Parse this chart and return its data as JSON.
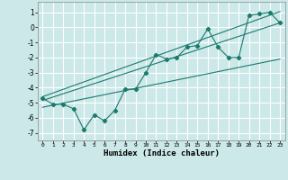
{
  "xlabel": "Humidex (Indice chaleur)",
  "xlim": [
    -0.5,
    23.5
  ],
  "ylim": [
    -7.5,
    1.7
  ],
  "yticks": [
    1,
    0,
    -1,
    -2,
    -3,
    -4,
    -5,
    -6,
    -7
  ],
  "xticks": [
    0,
    1,
    2,
    3,
    4,
    5,
    6,
    7,
    8,
    9,
    10,
    11,
    12,
    13,
    14,
    15,
    16,
    17,
    18,
    19,
    20,
    21,
    22,
    23
  ],
  "bg_color": "#cce8e8",
  "grid_color": "#aacccc",
  "line_color": "#1a7a6e",
  "scatter_x": [
    0,
    1,
    2,
    3,
    4,
    5,
    6,
    7,
    8,
    9,
    10,
    11,
    12,
    13,
    14,
    15,
    16,
    17,
    18,
    19,
    20,
    21,
    22,
    23
  ],
  "scatter_y": [
    -4.7,
    -5.1,
    -5.1,
    -5.4,
    -6.8,
    -5.8,
    -6.2,
    -5.5,
    -4.1,
    -4.1,
    -3.0,
    -1.8,
    -2.1,
    -2.0,
    -1.3,
    -1.2,
    -0.1,
    -1.3,
    -2.0,
    -2.0,
    0.8,
    0.9,
    1.0,
    0.3
  ],
  "line1_x": [
    0,
    23
  ],
  "line1_y": [
    -4.85,
    0.3
  ],
  "line2_x": [
    0,
    23
  ],
  "line2_y": [
    -5.3,
    -2.1
  ],
  "line3_x": [
    0,
    23
  ],
  "line3_y": [
    -4.6,
    1.05
  ]
}
